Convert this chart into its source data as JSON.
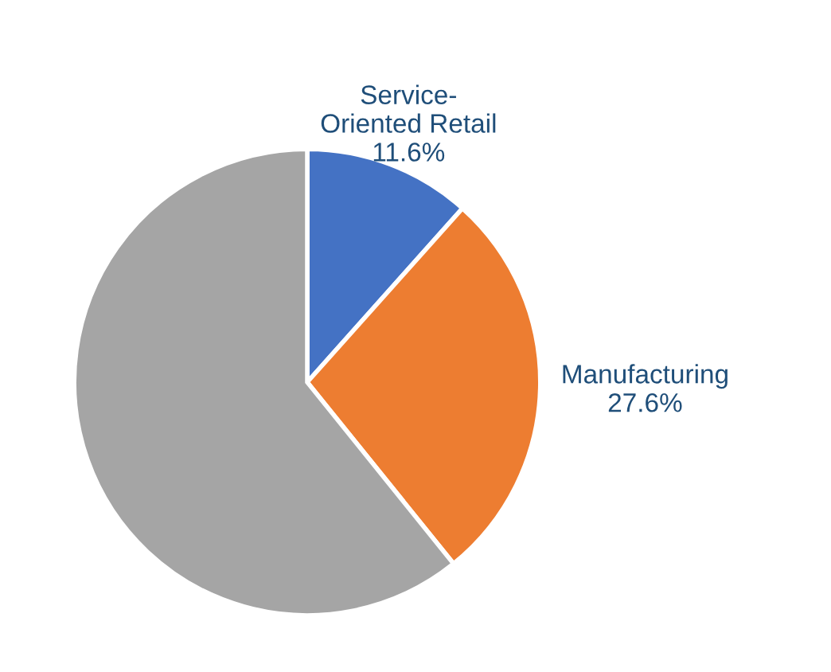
{
  "chart_data": {
    "type": "pie",
    "categories": [
      "Service-\nOriented Retail",
      "Manufacturing",
      null
    ],
    "values": [
      11.6,
      27.6,
      60.8
    ],
    "value_labels": [
      "11.6%",
      "27.6%",
      null
    ],
    "colors": [
      "#4472c4",
      "#ed7d31",
      "#a5a5a5"
    ],
    "legend": false
  }
}
